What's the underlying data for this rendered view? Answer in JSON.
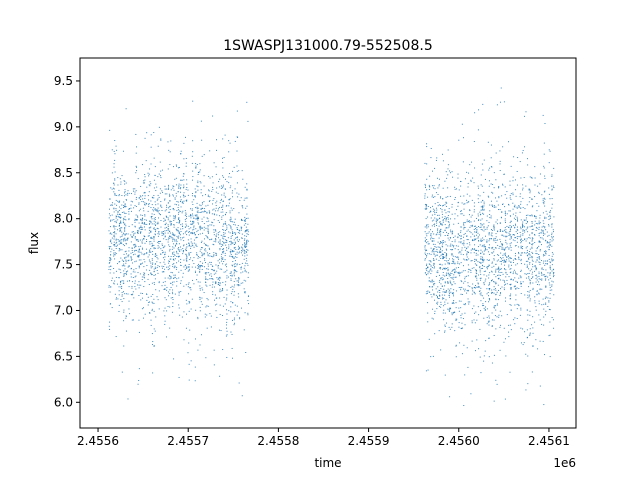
{
  "chart_data": {
    "type": "scatter",
    "title": "1SWASPJ131000.79-552508.5",
    "xlabel": "time",
    "ylabel": "flux",
    "x_offset_label": "1e6",
    "xlim": [
      2455580,
      2456130
    ],
    "ylim": [
      5.72,
      9.75
    ],
    "x_ticks": [
      2455600,
      2455700,
      2455800,
      2455900,
      2456000,
      2456100
    ],
    "x_tick_labels": [
      "2.4556",
      "2.4557",
      "2.4558",
      "2.4559",
      "2.4560",
      "2.4561"
    ],
    "y_ticks": [
      6.0,
      6.5,
      7.0,
      7.5,
      8.0,
      8.5,
      9.0,
      9.5
    ],
    "y_tick_labels": [
      "6.0",
      "6.5",
      "7.0",
      "7.5",
      "8.0",
      "8.5",
      "9.0",
      "9.5"
    ],
    "grid": false,
    "marker_color": "#1f77b4",
    "series": [
      {
        "segments": [
          {
            "x_range": [
              2455612,
              2455768
            ],
            "y_center": 7.75,
            "y_spread": 0.42
          },
          {
            "x_range": [
              2455962,
              2456106
            ],
            "y_center": 7.65,
            "y_spread": 0.45
          }
        ]
      }
    ]
  }
}
